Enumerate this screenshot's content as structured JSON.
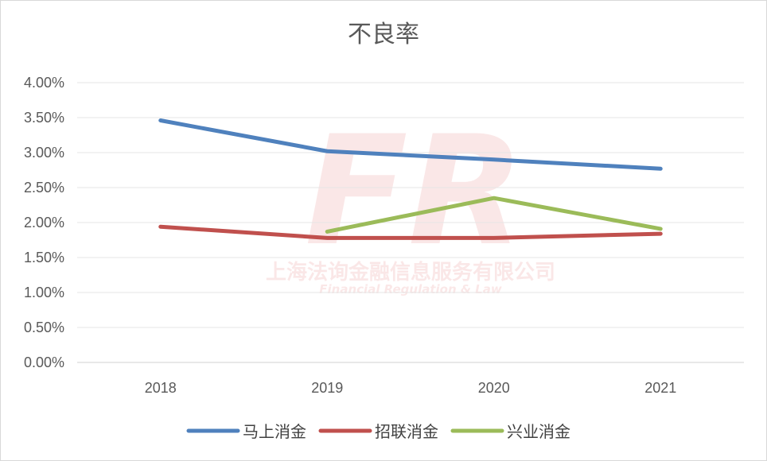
{
  "chart_data": {
    "type": "line",
    "title": "不良率",
    "categories": [
      "2018",
      "2019",
      "2020",
      "2021"
    ],
    "series": [
      {
        "name": "马上消金",
        "color": "#4f81bd",
        "values": [
          0.0346,
          0.0302,
          0.029,
          0.0277
        ]
      },
      {
        "name": "招联消金",
        "color": "#c0504d",
        "values": [
          0.0194,
          0.0178,
          0.0178,
          0.0184
        ]
      },
      {
        "name": "兴业消金",
        "color": "#9bbb59",
        "values": [
          null,
          0.0187,
          0.0235,
          0.0191
        ]
      }
    ],
    "ylim": [
      0,
      0.04
    ],
    "yticks": [
      "0.00%",
      "0.50%",
      "1.00%",
      "1.50%",
      "2.00%",
      "2.50%",
      "3.00%",
      "3.50%",
      "4.00%"
    ],
    "grid": true,
    "legend": "bottom",
    "xlabel": "",
    "ylabel": ""
  },
  "watermark": {
    "logo_text": "FR",
    "company": "上海法询金融信息服务有限公司",
    "english": "Financial Regulation & Law"
  }
}
